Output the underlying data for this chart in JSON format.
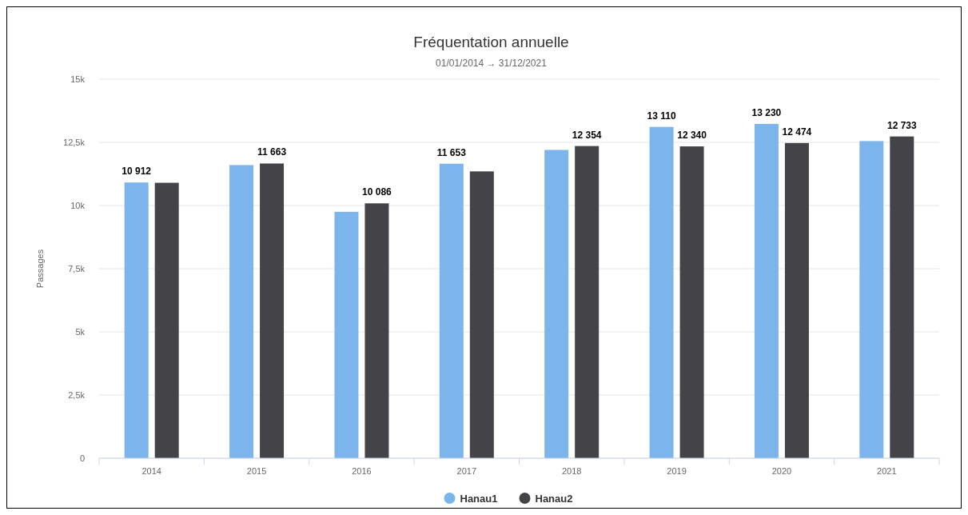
{
  "chart_data": {
    "type": "bar",
    "title": "Fréquentation annuelle",
    "subtitle": "01/01/2014 → 31/12/2021",
    "ylabel": "Passages",
    "categories": [
      "2014",
      "2015",
      "2016",
      "2017",
      "2018",
      "2019",
      "2020",
      "2021"
    ],
    "series": [
      {
        "name": "Hanau1",
        "color": "#7cb5ec",
        "values": [
          10912,
          11600,
          9750,
          11653,
          12200,
          13110,
          13230,
          12550
        ],
        "value_labels": [
          "10 912",
          null,
          null,
          "11 653",
          null,
          "13 110",
          "13 230",
          null
        ]
      },
      {
        "name": "Hanau2",
        "color": "#434348",
        "values": [
          10900,
          11663,
          10086,
          11350,
          12354,
          12340,
          12474,
          12733
        ],
        "value_labels": [
          null,
          "11 663",
          "10 086",
          null,
          "12 354",
          "12 340",
          "12 474",
          "12 733"
        ]
      }
    ],
    "ylim": [
      0,
      15000
    ],
    "yticks": [
      {
        "value": 0,
        "label": "0"
      },
      {
        "value": 2500,
        "label": "2,5k"
      },
      {
        "value": 5000,
        "label": "5k"
      },
      {
        "value": 7500,
        "label": "7,5k"
      },
      {
        "value": 10000,
        "label": "10k"
      },
      {
        "value": 12500,
        "label": "12,5k"
      },
      {
        "value": 15000,
        "label": "15k"
      }
    ],
    "grid": "y",
    "legend": "bottom"
  }
}
